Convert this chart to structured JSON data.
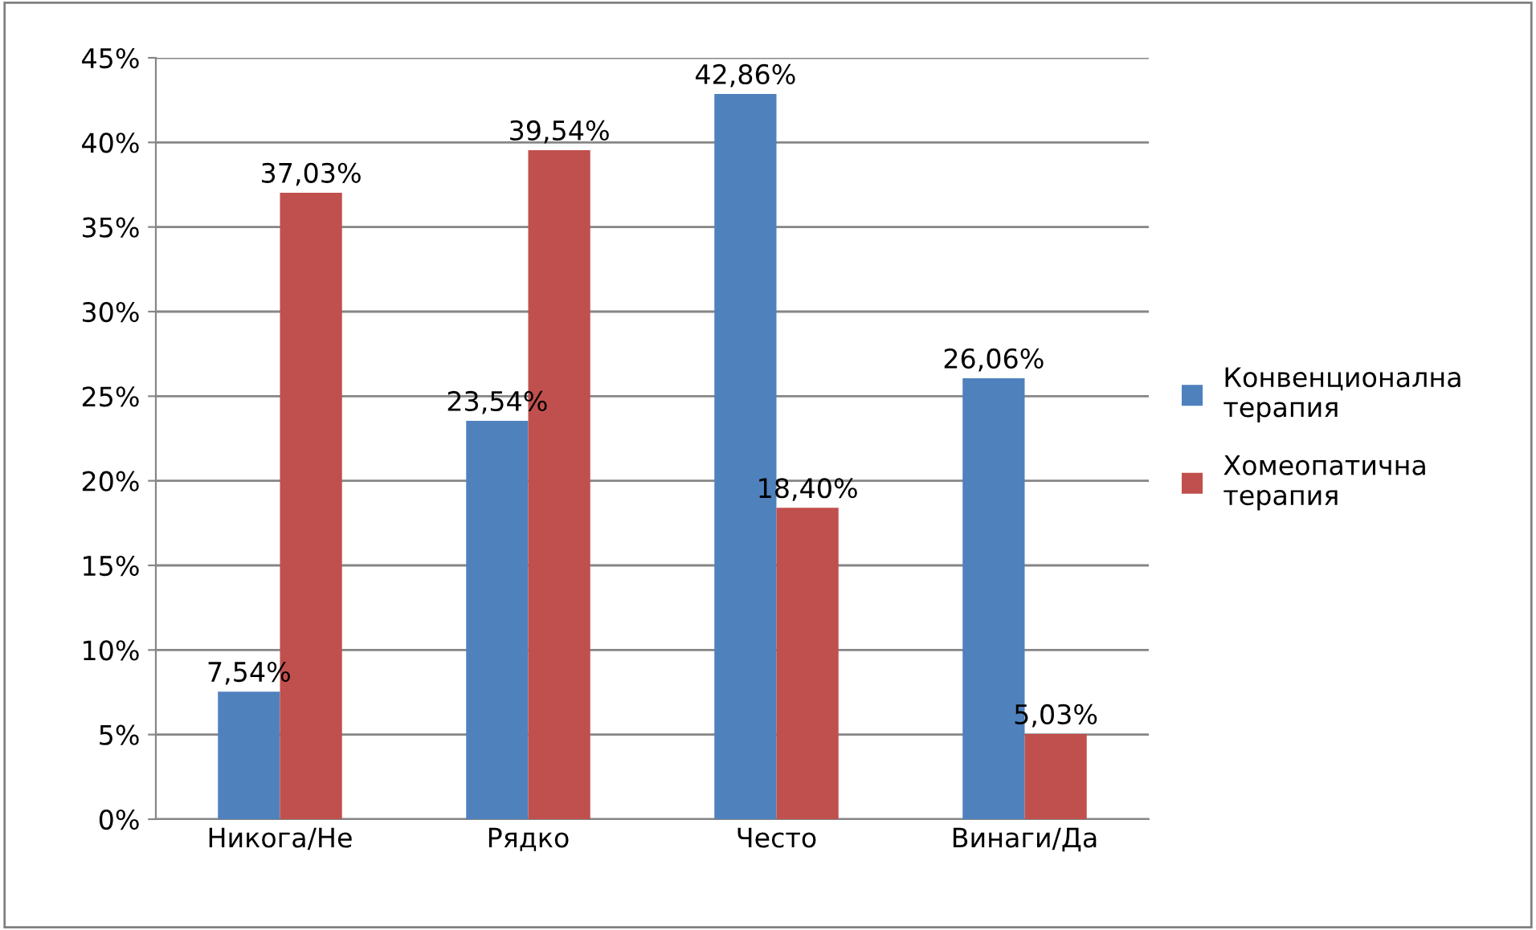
{
  "chart_data": {
    "type": "bar",
    "categories": [
      "Никога/Не",
      "Рядко",
      "Често",
      "Винаги/Да"
    ],
    "series": [
      {
        "name": "Конвенционална терапия",
        "color": "#4f81bd",
        "values": [
          7.54,
          23.54,
          42.86,
          26.06
        ],
        "value_labels": [
          "7,54%",
          "23,54%",
          "42,86%",
          "26,06%"
        ]
      },
      {
        "name": "Хомеопатична терапия",
        "color": "#c0504d",
        "values": [
          37.03,
          39.54,
          18.4,
          5.03
        ],
        "value_labels": [
          "37,03%",
          "39,54%",
          "18,40%",
          "5,03%"
        ]
      }
    ],
    "ylim": [
      0,
      45
    ],
    "yticks": [
      {
        "value": 0,
        "label": "0%"
      },
      {
        "value": 5,
        "label": "5%"
      },
      {
        "value": 10,
        "label": "10%"
      },
      {
        "value": 15,
        "label": "15%"
      },
      {
        "value": 20,
        "label": "20%"
      },
      {
        "value": 25,
        "label": "25%"
      },
      {
        "value": 30,
        "label": "30%"
      },
      {
        "value": 35,
        "label": "35%"
      },
      {
        "value": 40,
        "label": "40%"
      },
      {
        "value": 45,
        "label": "45%"
      }
    ],
    "grid": "y",
    "legend": "right"
  }
}
